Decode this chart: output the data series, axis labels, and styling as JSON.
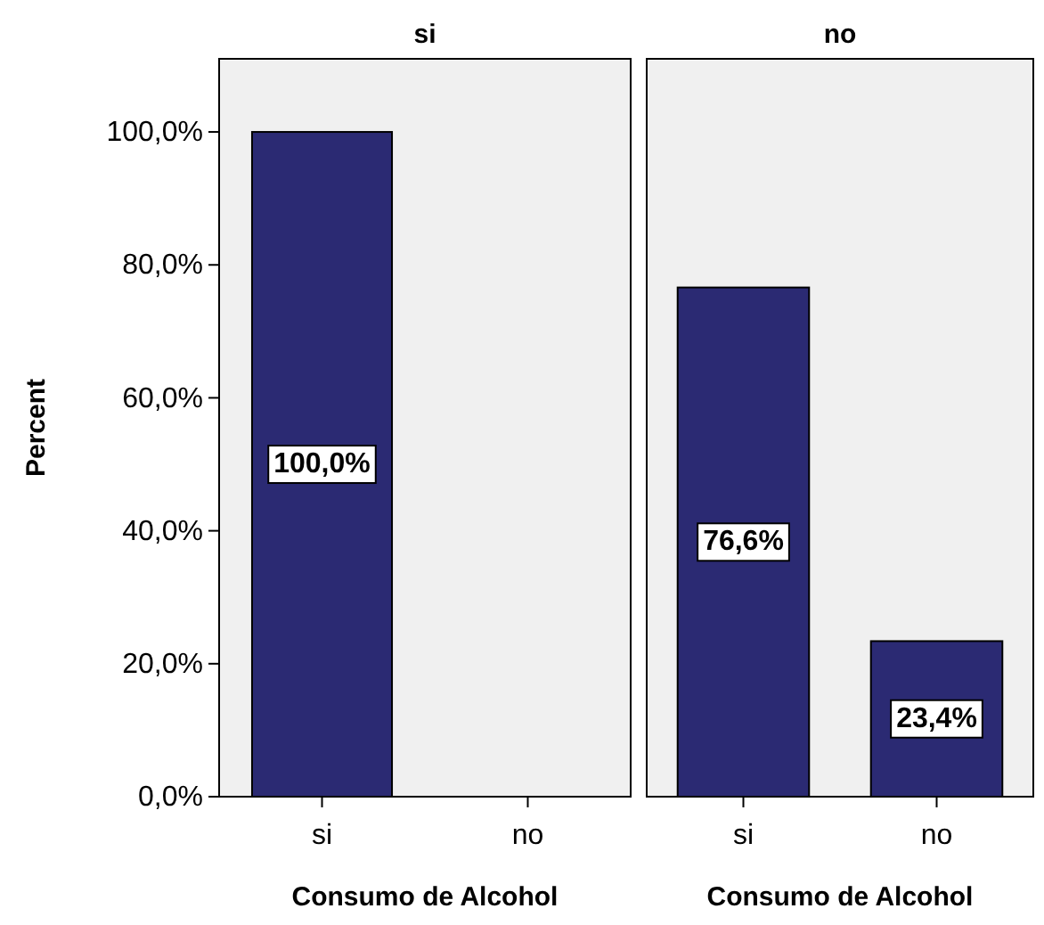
{
  "chart_data": [
    {
      "type": "bar",
      "title": "si",
      "xlabel": "Consumo de Alcohol",
      "ylabel": "Percent",
      "categories": [
        "si",
        "no"
      ],
      "values": [
        100,
        null
      ],
      "value_labels": [
        "100,0%",
        null
      ],
      "color": "#2b2a73",
      "ylim": [
        0,
        111
      ],
      "yticks": [
        {
          "value": 0,
          "label": "0,0%"
        },
        {
          "value": 20,
          "label": "20,0%"
        },
        {
          "value": 40,
          "label": "40,0%"
        },
        {
          "value": 60,
          "label": "60,0%"
        },
        {
          "value": 80,
          "label": "80,0%"
        },
        {
          "value": 100,
          "label": "100,0%"
        }
      ],
      "grid": false
    },
    {
      "type": "bar",
      "title": "no",
      "xlabel": "Consumo de Alcohol",
      "categories": [
        "si",
        "no"
      ],
      "values": [
        76.6,
        23.4
      ],
      "value_labels": [
        "76,6%",
        "23,4%"
      ],
      "color": "#2b2a73",
      "ylim": [
        0,
        111
      ],
      "grid": false,
      "tick_labels": "x"
    }
  ]
}
